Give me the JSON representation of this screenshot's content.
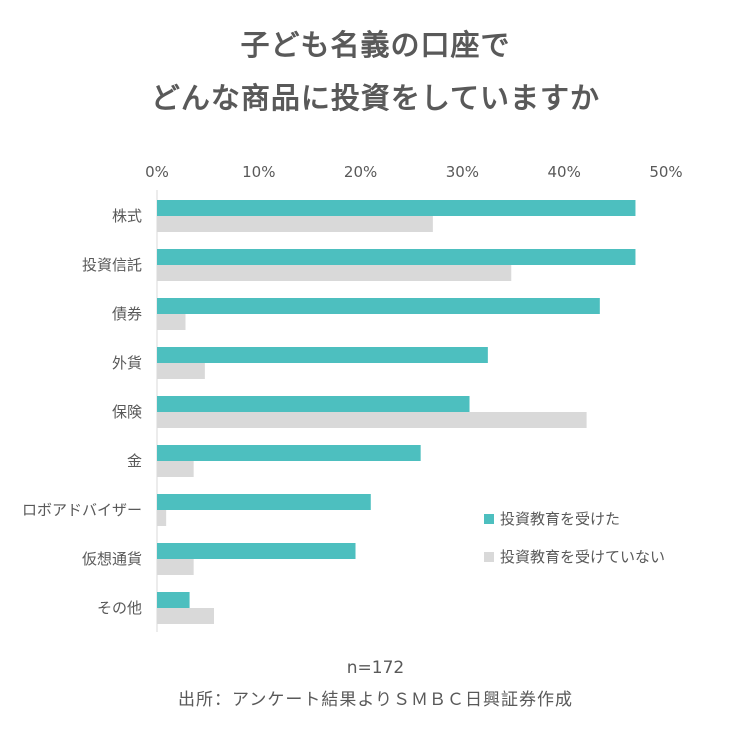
{
  "title_lines": [
    "子ども名義の口座で",
    "どんな商品に投資をしていますか"
  ],
  "chart_data": {
    "type": "bar",
    "orientation": "horizontal",
    "categories": [
      "株式",
      "投資信託",
      "債券",
      "外貨",
      "保険",
      "金",
      "ロボアドバイザー",
      "仮想通貨",
      "その他"
    ],
    "series": [
      {
        "name": "投資教育を受けた",
        "color": "#4dbfbf",
        "values": [
          47,
          47,
          43.5,
          32.5,
          30.7,
          25.9,
          21,
          19.5,
          3.2
        ]
      },
      {
        "name": "投資教育を受けていない",
        "color": "#d9d9d9",
        "values": [
          27.1,
          34.8,
          2.8,
          4.7,
          42.2,
          3.6,
          0.9,
          3.6,
          5.6
        ]
      }
    ],
    "xlim": [
      0,
      50
    ],
    "x_ticks": [
      "0%",
      "10%",
      "20%",
      "30%",
      "40%",
      "50%"
    ],
    "legend_position": "lower-right",
    "grid": false
  },
  "sample_size": "n=172",
  "source": "出所：アンケート結果よりＳＭＢＣ日興証券作成"
}
